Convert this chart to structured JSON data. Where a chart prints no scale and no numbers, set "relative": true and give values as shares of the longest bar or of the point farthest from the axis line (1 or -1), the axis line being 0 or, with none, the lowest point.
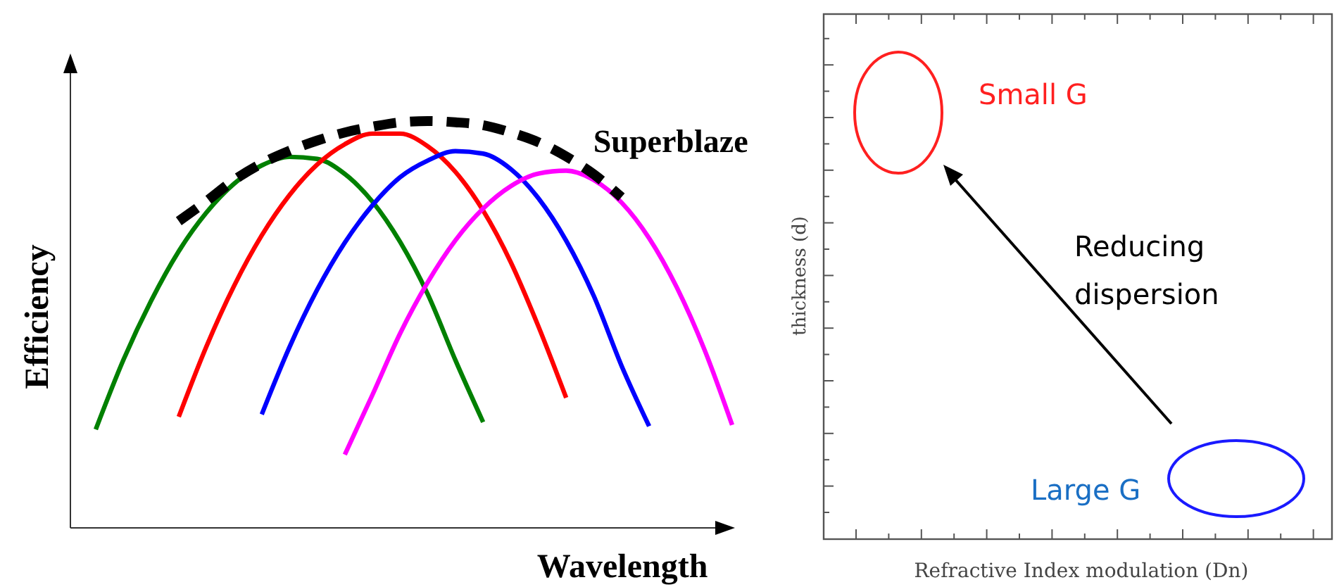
{
  "chart_data": [
    {
      "type": "line",
      "relative": true,
      "xlabel": "Wavelength",
      "ylabel": "Efficiency",
      "marker": "none",
      "categories": [
        null,
        null,
        null,
        null,
        null,
        null,
        null,
        null,
        null,
        null,
        null,
        null,
        null,
        null,
        null,
        null,
        null,
        null,
        null,
        null,
        null,
        null,
        null,
        null
      ],
      "series": [
        {
          "color": "#008000",
          "values": [
            0.242,
            0.413,
            0.558,
            0.68,
            0.775,
            0.846,
            0.891,
            0.912,
            0.907,
            0.87,
            0.802,
            0.703,
            0.574,
            0.412,
            0.26,
            null,
            null,
            null,
            null,
            null,
            null,
            null,
            null,
            null
          ]
        },
        {
          "color": "#ff0000",
          "values": [
            null,
            null,
            null,
            0.273,
            0.446,
            0.595,
            0.719,
            0.818,
            0.893,
            0.943,
            0.969,
            0.969,
            0.938,
            0.875,
            0.78,
            0.653,
            0.495,
            0.32,
            null,
            null,
            null,
            null,
            null,
            null
          ]
        },
        {
          "color": "#0000ff",
          "values": [
            null,
            null,
            null,
            null,
            null,
            null,
            0.279,
            0.444,
            0.585,
            0.701,
            0.793,
            0.862,
            0.903,
            0.926,
            0.92,
            0.882,
            0.81,
            0.706,
            0.57,
            0.399,
            0.25,
            null,
            null,
            null
          ]
        },
        {
          "color": "#ff00ff",
          "values": [
            null,
            null,
            null,
            null,
            null,
            null,
            null,
            null,
            null,
            0.18,
            0.327,
            0.478,
            0.604,
            0.707,
            0.785,
            0.84,
            0.871,
            0.878,
            0.855,
            0.8,
            0.712,
            0.591,
            0.438,
            0.253
          ]
        },
        {
          "name": "Superblaze",
          "color": "#000000",
          "line_style": "dashed",
          "values": [
            null,
            null,
            null,
            0.754,
            0.803,
            0.855,
            0.896,
            0.927,
            0.952,
            0.972,
            0.986,
            0.997,
            1,
            0.997,
            0.99,
            0.972,
            0.948,
            0.913,
            0.869,
            0.813,
            null,
            null,
            null,
            null
          ]
        }
      ]
    },
    {
      "type": "other",
      "xlabel": "Refractive Index modulation (Dn)",
      "ylabel": "thickness (d)",
      "annotations": [
        "Small G",
        "Reducing dispersion",
        "Large G"
      ]
    }
  ]
}
